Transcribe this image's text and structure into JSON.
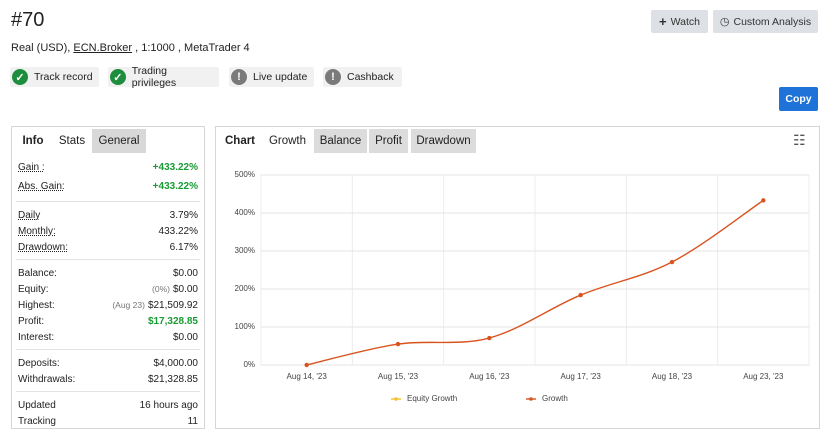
{
  "header": {
    "title": "#70",
    "account": "Real (USD),",
    "broker": "ECN.Broker",
    "details": ", 1:1000 , MetaTrader 4"
  },
  "buttons": {
    "watch": "Watch",
    "custom": "Custom Analysis",
    "copy": "Copy"
  },
  "badges": [
    {
      "label": "Track record",
      "status": "ok"
    },
    {
      "label": "Trading privileges",
      "status": "ok"
    },
    {
      "label": "Live update",
      "status": "info"
    },
    {
      "label": "Cashback",
      "status": "info"
    }
  ],
  "stats_tabs": [
    "Info",
    "Stats",
    "General"
  ],
  "stats": [
    [
      {
        "label": "Gain :",
        "value": "+433.22%",
        "positive": true
      },
      {
        "label": "Abs. Gain:",
        "value": "+433.22%",
        "positive": true
      }
    ],
    [
      {
        "label": "Daily",
        "value": "3.79%"
      },
      {
        "label": "Monthly:",
        "value": "433.22%"
      },
      {
        "label": "Drawdown:",
        "value": "6.17%"
      }
    ],
    [
      {
        "label": "Balance:",
        "value": "$0.00"
      },
      {
        "label": "Equity:",
        "note": "(0%)",
        "value": "$0.00"
      },
      {
        "label": "Highest:",
        "note": "(Aug 23)",
        "value": "$21,509.92"
      },
      {
        "label": "Profit:",
        "value": "$17,328.85",
        "positive": true
      },
      {
        "label": "Interest:",
        "value": "$0.00"
      }
    ],
    [
      {
        "label": "Deposits:",
        "value": "$4,000.00"
      },
      {
        "label": "Withdrawals:",
        "value": "$21,328.85"
      }
    ],
    [
      {
        "label": "Updated",
        "value": "16 hours ago"
      },
      {
        "label": "Tracking",
        "value": "11"
      }
    ]
  ],
  "chart_tabs": [
    "Chart",
    "Growth",
    "Balance",
    "Profit",
    "Drawdown"
  ],
  "chart_data": {
    "type": "line",
    "categories": [
      "Aug 14, '23",
      "Aug 15, '23",
      "Aug 16, '23",
      "Aug 17, '23",
      "Aug 18, '23",
      "Aug 23, '23"
    ],
    "series": [
      {
        "name": "Growth",
        "color": "#d9531e",
        "values": [
          0,
          55,
          71,
          184,
          271,
          433.22
        ]
      }
    ],
    "legend": [
      {
        "name": "Equity Growth",
        "color": "#f2c12e"
      }
    ],
    "ylim": [
      0,
      500
    ],
    "yticks": [
      {
        "value": 0,
        "label": "0%"
      },
      {
        "value": 100,
        "label": "100%"
      },
      {
        "value": 200,
        "label": "200%"
      },
      {
        "value": 300,
        "label": "300%"
      },
      {
        "value": 400,
        "label": "400%"
      },
      {
        "value": 500,
        "label": "500%"
      }
    ],
    "grid": true
  }
}
